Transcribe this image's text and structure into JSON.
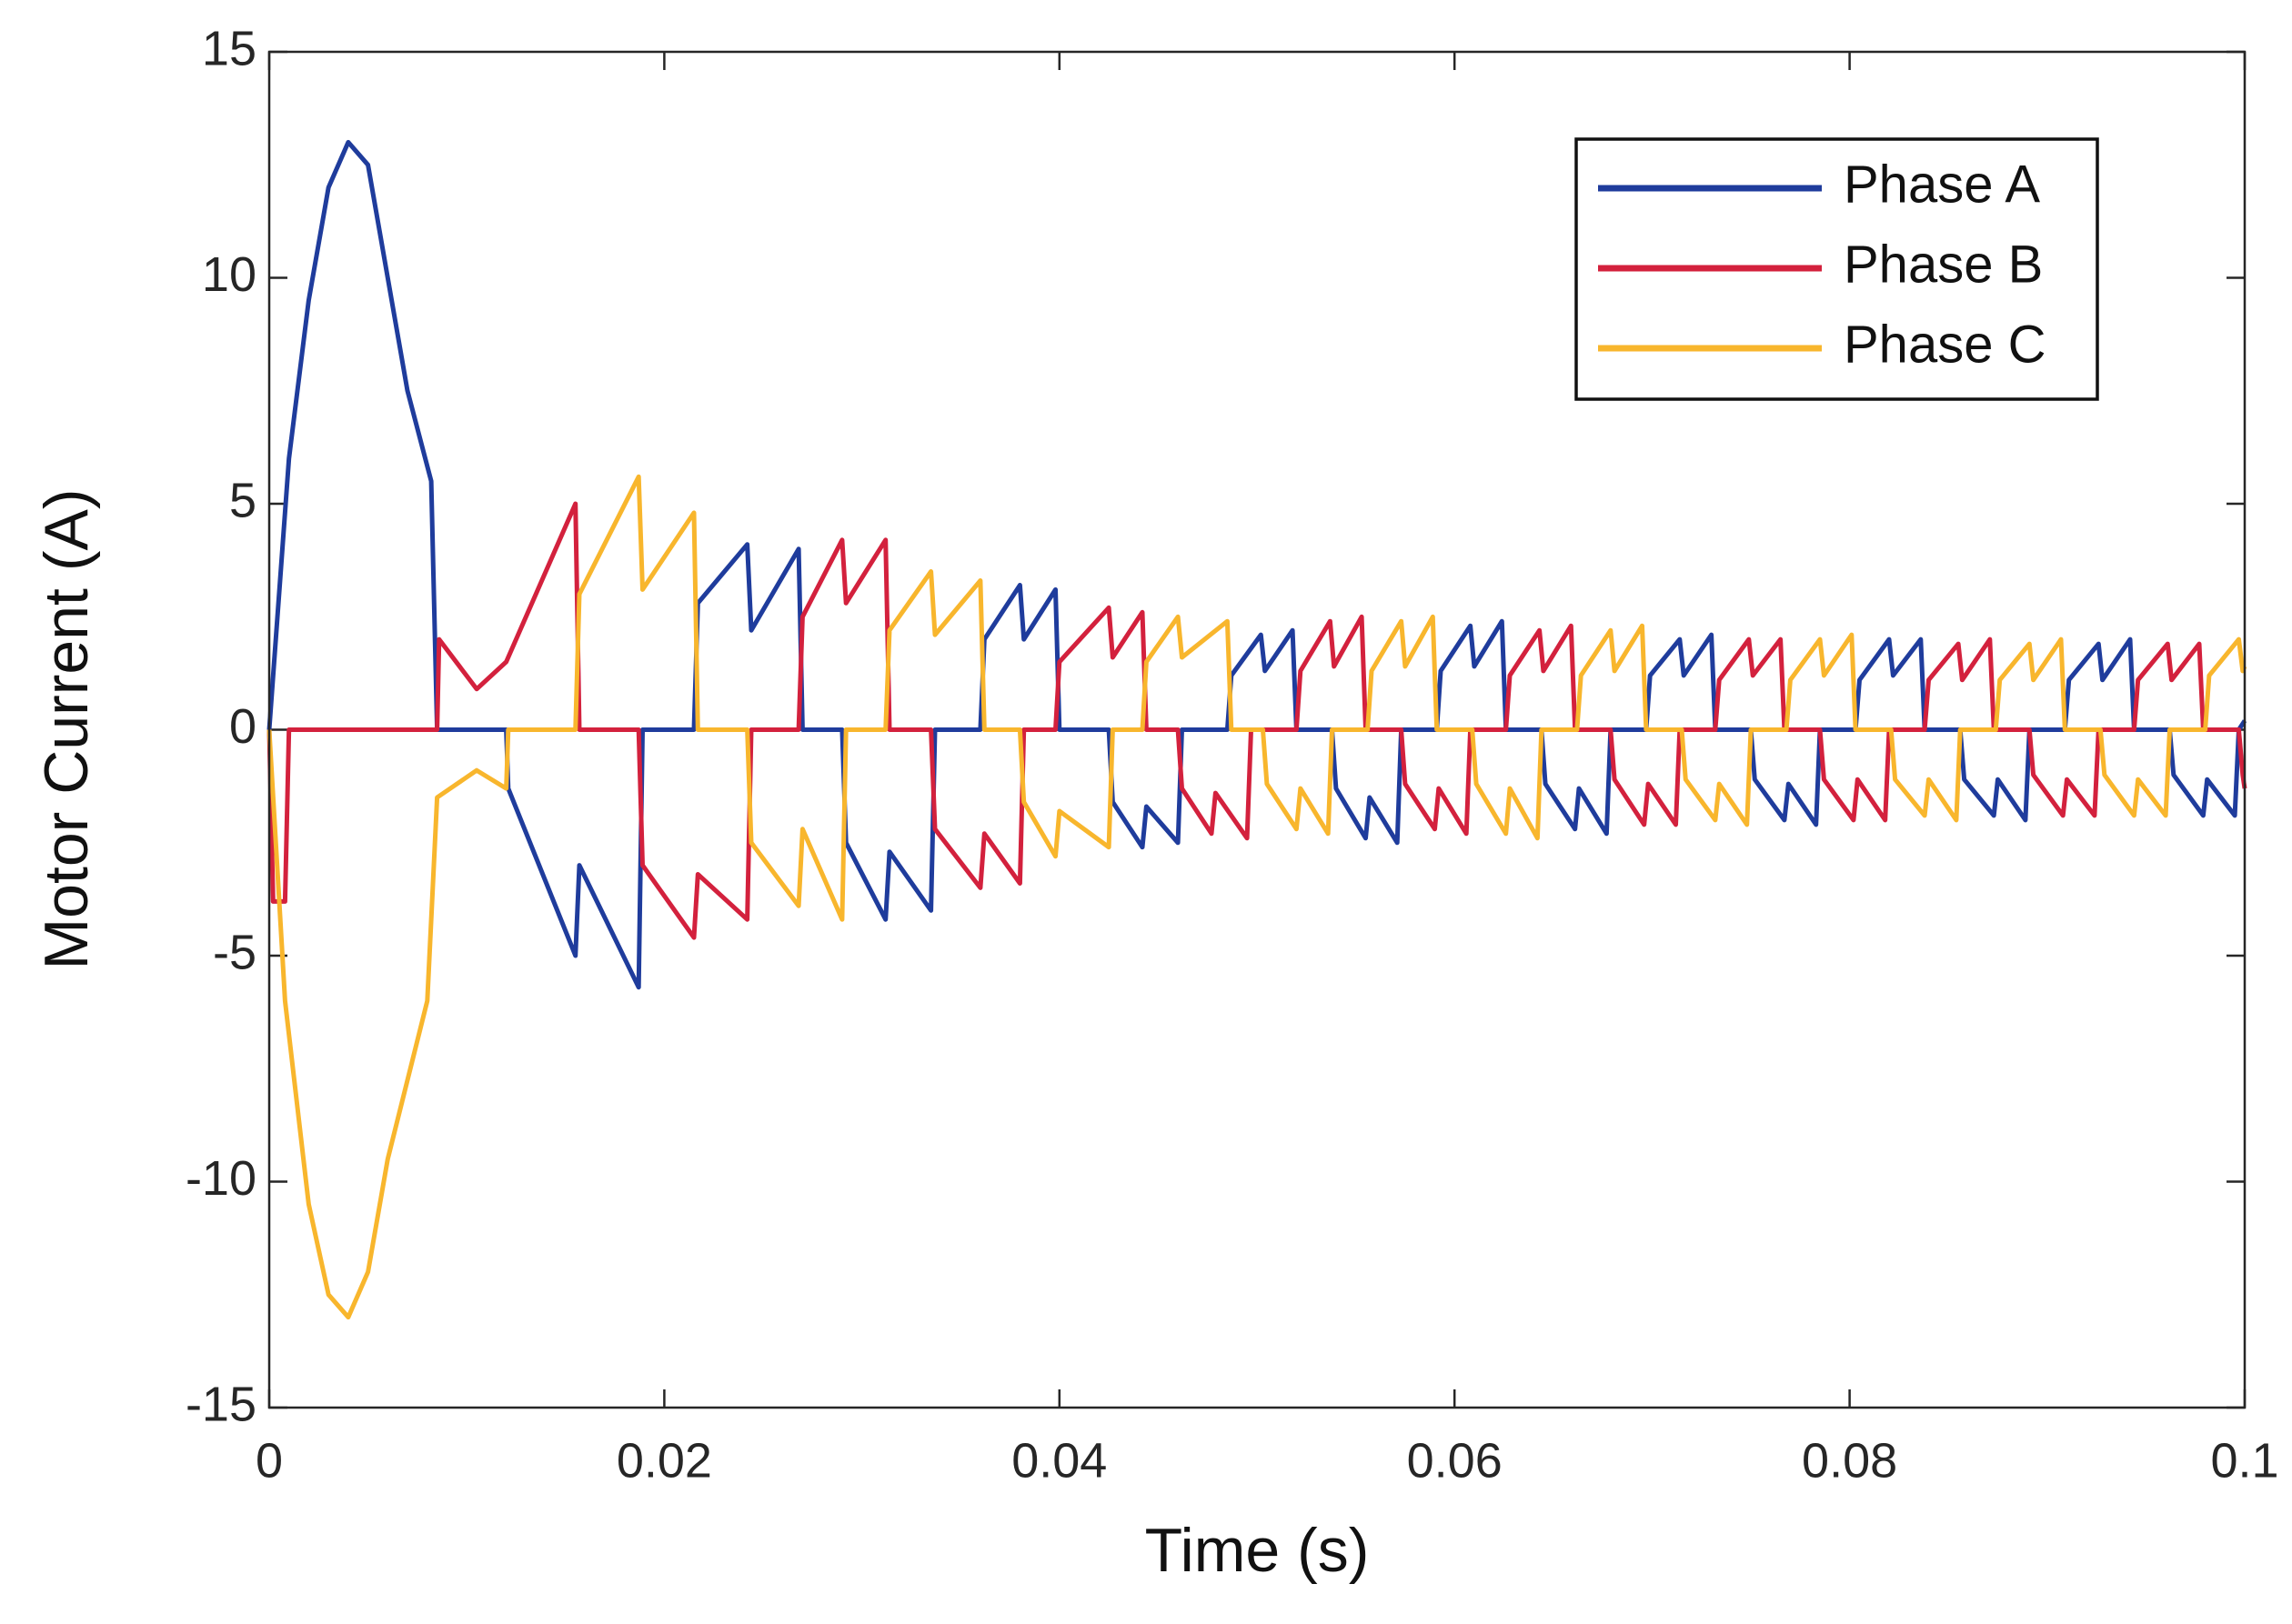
{
  "chart_data": {
    "type": "line",
    "xlabel": "Time (s)",
    "ylabel": "Motor Current (A)",
    "xlim": [
      0,
      0.1
    ],
    "xticks": [
      0,
      0.02,
      0.04,
      0.06,
      0.08,
      0.1
    ],
    "ylim": [
      -15,
      15
    ],
    "yticks": [
      -15,
      -10,
      -5,
      0,
      5,
      10,
      15
    ],
    "grid": false,
    "legend": "upper right",
    "series": [
      {
        "name": "Phase A",
        "color": "#1f3c9c",
        "x": [
          0,
          0.001,
          0.002,
          0.003,
          0.004,
          0.005,
          0.006,
          0.007,
          0.0082,
          0.0085,
          0.012,
          0.0121,
          0.0155,
          0.0157,
          0.0187,
          0.0189,
          0.0215,
          0.0217,
          0.0242,
          0.0244,
          0.0268,
          0.027,
          0.029,
          0.0292,
          0.0312,
          0.0314,
          0.0335,
          0.0337,
          0.036,
          0.0362,
          0.038,
          0.0382,
          0.0398,
          0.04,
          0.0425,
          0.0427,
          0.0442,
          0.0444,
          0.046,
          0.0462,
          0.0485,
          0.0487,
          0.0502,
          0.0504,
          0.0518,
          0.052,
          0.0538,
          0.054,
          0.0555,
          0.0557,
          0.0571,
          0.0573,
          0.0591,
          0.0593,
          0.0608,
          0.061,
          0.0624,
          0.0626,
          0.0644,
          0.0646,
          0.0661,
          0.0663,
          0.0677,
          0.0679,
          0.0697,
          0.0699,
          0.0714,
          0.0716,
          0.073,
          0.0732,
          0.075,
          0.0752,
          0.0767,
          0.0769,
          0.0783,
          0.0785,
          0.0803,
          0.0805,
          0.082,
          0.0822,
          0.0836,
          0.0838,
          0.0856,
          0.0858,
          0.0873,
          0.0875,
          0.0889,
          0.0891,
          0.0909,
          0.0911,
          0.0926,
          0.0928,
          0.0942,
          0.0944,
          0.0962,
          0.0964,
          0.0979,
          0.0981,
          0.0995,
          0.0997,
          0.1
        ],
        "values": [
          0,
          6,
          9.5,
          12,
          13,
          12.5,
          10,
          7.5,
          5.5,
          0,
          0,
          -1.3,
          -5,
          -3,
          -5.7,
          0,
          0,
          2.8,
          4.1,
          2.2,
          4,
          0,
          0,
          -2.5,
          -4.2,
          -2.7,
          -4,
          0,
          0,
          2,
          3.2,
          2,
          3.1,
          0,
          0,
          -1.6,
          -2.6,
          -1.7,
          -2.5,
          0,
          0,
          1.2,
          2.1,
          1.3,
          2.2,
          0,
          0,
          -1.3,
          -2.4,
          -1.5,
          -2.5,
          0,
          0,
          1.3,
          2.3,
          1.4,
          2.4,
          0,
          0,
          -1.2,
          -2.2,
          -1.3,
          -2.3,
          0,
          0,
          1.2,
          2.0,
          1.2,
          2.1,
          0,
          0,
          -1.1,
          -2.0,
          -1.2,
          -2.1,
          0,
          0,
          1.1,
          2.0,
          1.2,
          2.0,
          0,
          0,
          -1.1,
          -1.9,
          -1.1,
          -2.0,
          0,
          0,
          1.1,
          1.9,
          1.1,
          2.0,
          0,
          0,
          -1.0,
          -1.9,
          -1.1,
          -1.9,
          0,
          0.2
        ]
      },
      {
        "name": "Phase B",
        "color": "#d3213d",
        "x": [
          0,
          0.0002,
          0.0008,
          0.001,
          0.0085,
          0.0086,
          0.0105,
          0.012,
          0.0155,
          0.0157,
          0.0187,
          0.0189,
          0.0215,
          0.0217,
          0.0242,
          0.0244,
          0.0268,
          0.027,
          0.029,
          0.0292,
          0.0312,
          0.0314,
          0.0335,
          0.0337,
          0.036,
          0.0362,
          0.038,
          0.0382,
          0.0398,
          0.04,
          0.0425,
          0.0427,
          0.0442,
          0.0444,
          0.046,
          0.0462,
          0.0477,
          0.0479,
          0.0495,
          0.0497,
          0.052,
          0.0522,
          0.0537,
          0.0539,
          0.0553,
          0.0555,
          0.0573,
          0.0575,
          0.059,
          0.0592,
          0.0606,
          0.0608,
          0.0626,
          0.0628,
          0.0643,
          0.0645,
          0.0659,
          0.0661,
          0.0679,
          0.0681,
          0.0696,
          0.0698,
          0.0712,
          0.0714,
          0.0732,
          0.0734,
          0.0749,
          0.0751,
          0.0765,
          0.0767,
          0.0785,
          0.0787,
          0.0802,
          0.0804,
          0.0818,
          0.082,
          0.0838,
          0.084,
          0.0855,
          0.0857,
          0.0871,
          0.0873,
          0.0891,
          0.0893,
          0.0908,
          0.091,
          0.0924,
          0.0926,
          0.0944,
          0.0946,
          0.0961,
          0.0963,
          0.0977,
          0.0979,
          0.0997,
          0.0999,
          0.1
        ],
        "values": [
          0,
          -3.8,
          -3.8,
          0,
          0,
          2,
          0.9,
          1.5,
          5,
          0,
          0,
          -3,
          -4.6,
          -3.2,
          -4.2,
          0,
          0,
          2.5,
          4.2,
          2.8,
          4.2,
          0,
          0,
          -2.2,
          -3.5,
          -2.3,
          -3.4,
          0,
          0,
          1.5,
          2.7,
          1.6,
          2.6,
          0,
          0,
          -1.3,
          -2.3,
          -1.4,
          -2.4,
          0,
          0,
          1.3,
          2.4,
          1.4,
          2.5,
          0,
          0,
          -1.2,
          -2.2,
          -1.3,
          -2.3,
          0,
          0,
          1.2,
          2.2,
          1.3,
          2.3,
          0,
          0,
          -1.1,
          -2.1,
          -1.2,
          -2.1,
          0,
          0,
          1.1,
          2.0,
          1.2,
          2.0,
          0,
          0,
          -1.1,
          -2.0,
          -1.1,
          -2.0,
          0,
          0,
          1.1,
          1.9,
          1.1,
          2.0,
          0,
          0,
          -1.0,
          -1.9,
          -1.1,
          -1.9,
          0,
          0,
          1.1,
          1.9,
          1.1,
          1.9,
          0,
          0,
          -1.0,
          -1.3
        ]
      },
      {
        "name": "Phase C",
        "color": "#f8b62d",
        "x": [
          0,
          0.0008,
          0.002,
          0.003,
          0.004,
          0.005,
          0.006,
          0.008,
          0.0085,
          0.0105,
          0.012,
          0.0121,
          0.0155,
          0.0157,
          0.0187,
          0.0189,
          0.0215,
          0.0217,
          0.0242,
          0.0244,
          0.0268,
          0.027,
          0.029,
          0.0292,
          0.0312,
          0.0314,
          0.0335,
          0.0337,
          0.036,
          0.0362,
          0.038,
          0.0382,
          0.0398,
          0.04,
          0.0425,
          0.0427,
          0.0442,
          0.0444,
          0.046,
          0.0462,
          0.0485,
          0.0487,
          0.0503,
          0.0505,
          0.052,
          0.0522,
          0.0536,
          0.0538,
          0.0556,
          0.0558,
          0.0573,
          0.0575,
          0.0589,
          0.0591,
          0.0609,
          0.0611,
          0.0626,
          0.0628,
          0.0642,
          0.0644,
          0.0662,
          0.0664,
          0.0679,
          0.0681,
          0.0695,
          0.0697,
          0.0715,
          0.0717,
          0.0732,
          0.0734,
          0.0748,
          0.075,
          0.0768,
          0.077,
          0.0785,
          0.0787,
          0.0801,
          0.0803,
          0.0821,
          0.0823,
          0.0838,
          0.084,
          0.0854,
          0.0856,
          0.0874,
          0.0876,
          0.0891,
          0.0893,
          0.0907,
          0.0909,
          0.0927,
          0.0929,
          0.0944,
          0.0946,
          0.096,
          0.0962,
          0.098,
          0.0982,
          0.0997,
          0.0999,
          0.1
        ],
        "values": [
          0,
          -6,
          -10.5,
          -12.5,
          -13,
          -12,
          -9.5,
          -6,
          -1.5,
          -0.9,
          -1.3,
          0,
          0,
          3,
          5.6,
          3.1,
          4.8,
          0,
          0,
          -2.5,
          -3.9,
          -2.2,
          -4.2,
          0,
          0,
          2.2,
          3.5,
          2.1,
          3.3,
          0,
          0,
          -1.6,
          -2.8,
          -1.8,
          -2.6,
          0,
          0,
          1.5,
          2.5,
          1.6,
          2.4,
          0,
          0,
          -1.2,
          -2.2,
          -1.3,
          -2.3,
          0,
          0,
          1.3,
          2.4,
          1.4,
          2.5,
          0,
          0,
          -1.2,
          -2.3,
          -1.3,
          -2.4,
          0,
          0,
          1.2,
          2.2,
          1.3,
          2.3,
          0,
          0,
          -1.1,
          -2.0,
          -1.2,
          -2.1,
          0,
          0,
          1.1,
          2.0,
          1.2,
          2.1,
          0,
          0,
          -1.1,
          -1.9,
          -1.1,
          -2.0,
          0,
          0,
          1.1,
          1.9,
          1.1,
          2.0,
          0,
          0,
          -1.0,
          -1.9,
          -1.1,
          -1.9,
          0,
          0,
          1.2,
          2.0,
          1.3,
          1.4
        ]
      }
    ]
  }
}
